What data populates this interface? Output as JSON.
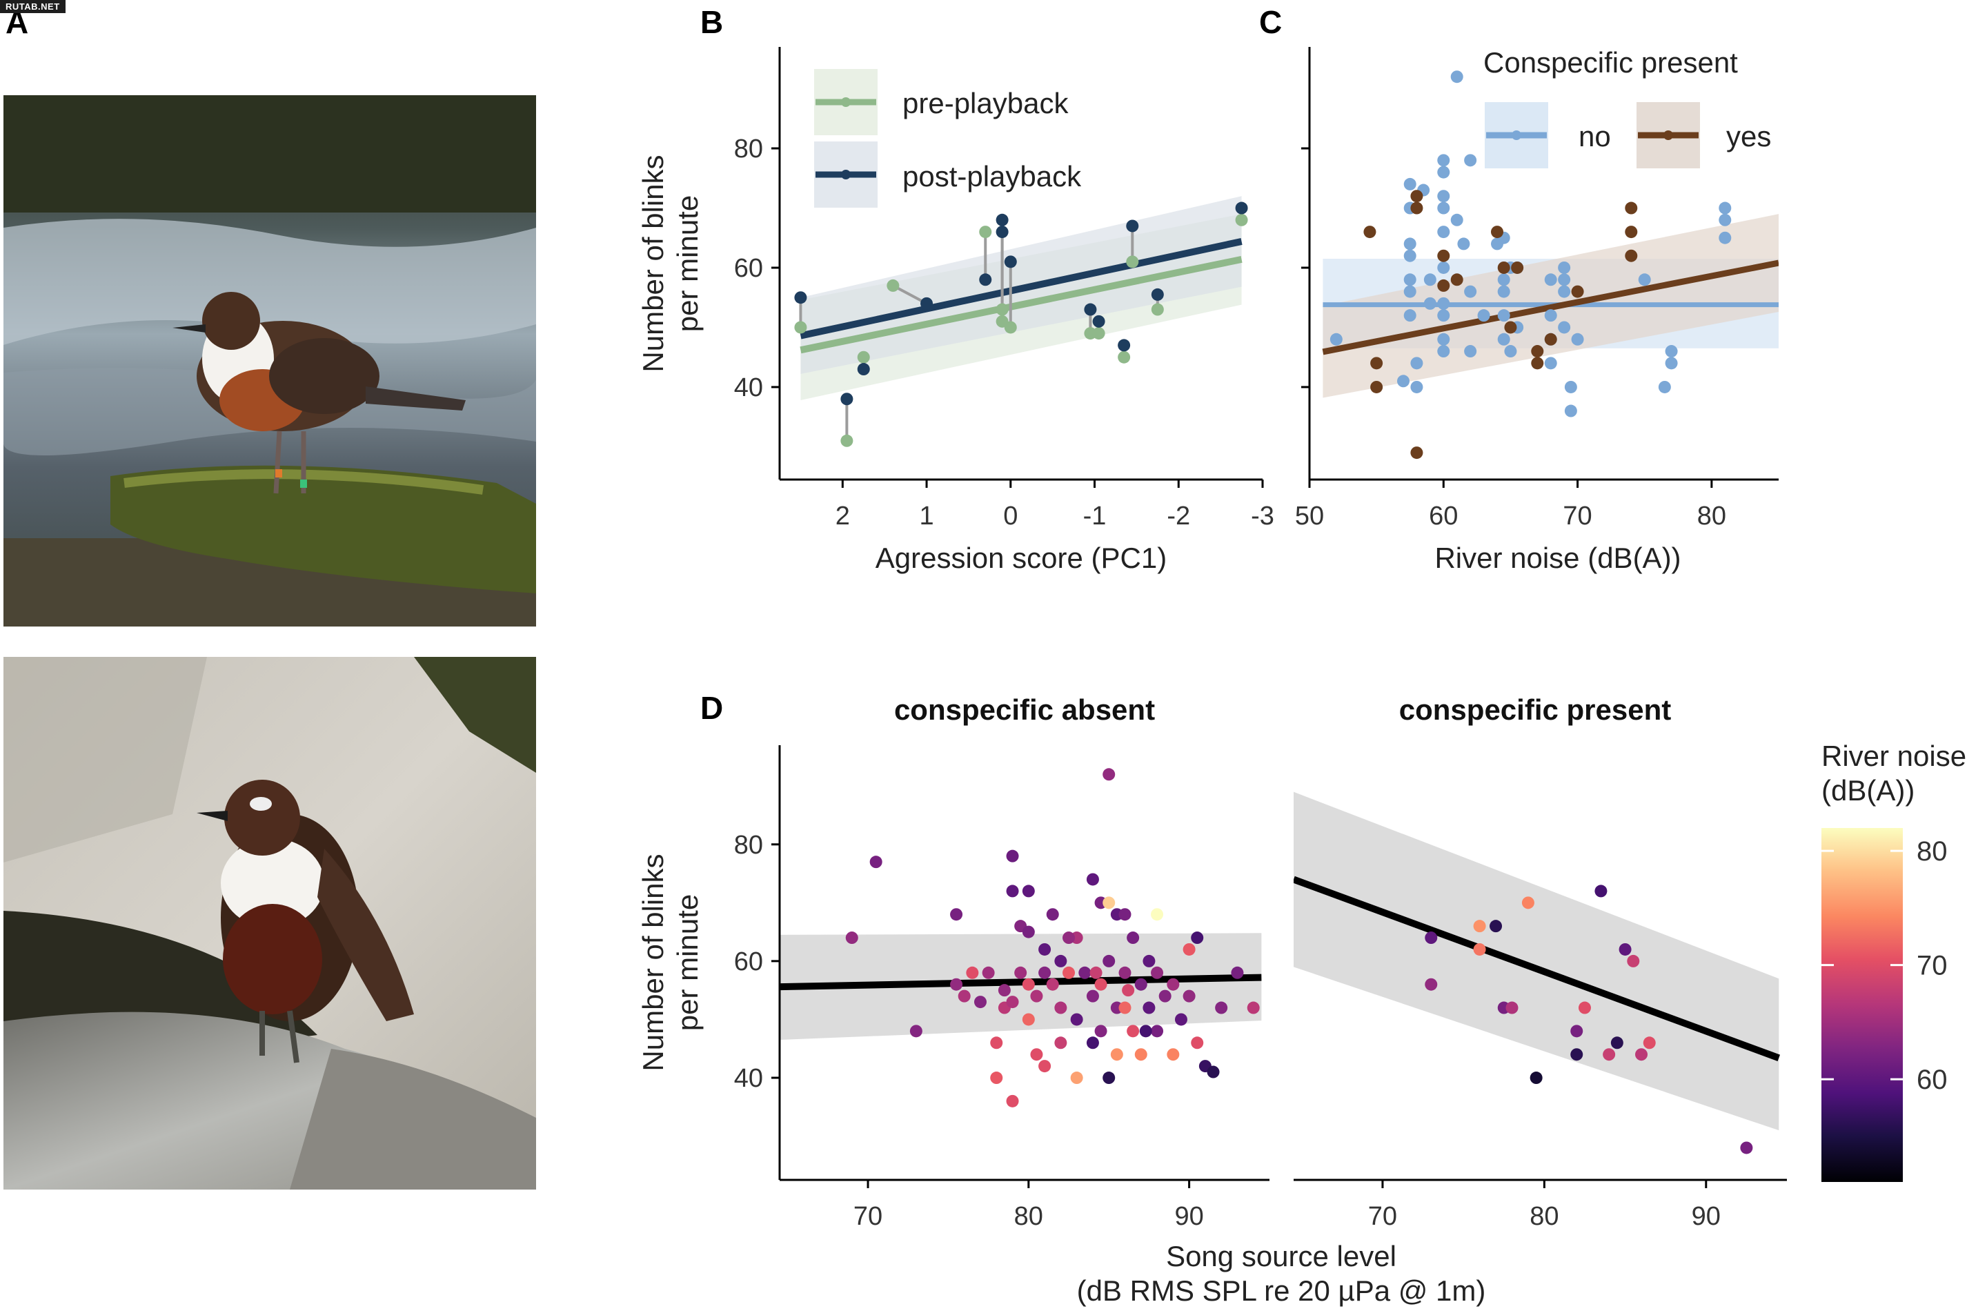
{
  "watermark": "RUTAB.NET",
  "panels": {
    "A": "A",
    "B": "B",
    "C": "C",
    "D": "D"
  },
  "photos": [
    {
      "subject": "dipper-on-mossy-rock"
    },
    {
      "subject": "dipper-on-rock-profile"
    }
  ],
  "chart_data": [
    {
      "panel": "B",
      "type": "scatter",
      "xlabel": "Agression score (PC1)",
      "ylabel": "Number of blinks per minute",
      "xlim": [
        2.75,
        -3.0
      ],
      "ylim": [
        24.5,
        97
      ],
      "x_reversed": true,
      "xticks": [
        2,
        1,
        0,
        -1,
        -2,
        -3
      ],
      "yticks": [
        40,
        60,
        80
      ],
      "legend_position": "top-left",
      "series": [
        {
          "name": "pre-playback",
          "color": "#8fb88a",
          "points": [
            [
              2.5,
              50
            ],
            [
              1.95,
              31
            ],
            [
              1.75,
              45
            ],
            [
              1.4,
              57
            ],
            [
              0.3,
              66
            ],
            [
              0.1,
              53
            ],
            [
              0.1,
              51
            ],
            [
              0,
              50
            ],
            [
              -0.95,
              49
            ],
            [
              -1.05,
              49
            ],
            [
              -1.35,
              45
            ],
            [
              -1.45,
              61
            ],
            [
              -1.75,
              53
            ],
            [
              -2.75,
              68
            ]
          ],
          "fit": {
            "x": [
              2.5,
              -2.75
            ],
            "y": [
              46.2,
              61.4
            ],
            "ci_lower": [
              37.8,
              53.8
            ],
            "ci_upper": [
              54.6,
              69.0
            ]
          }
        },
        {
          "name": "post-playback",
          "color": "#1e3d5e",
          "points": [
            [
              2.5,
              55
            ],
            [
              1.95,
              38
            ],
            [
              1.75,
              43
            ],
            [
              1.0,
              54
            ],
            [
              0.3,
              58
            ],
            [
              0.1,
              68
            ],
            [
              0.1,
              66
            ],
            [
              0,
              61
            ],
            [
              -0.95,
              53
            ],
            [
              -1.05,
              51
            ],
            [
              -1.35,
              47
            ],
            [
              -1.45,
              67
            ],
            [
              -1.75,
              55.5
            ],
            [
              -2.75,
              70
            ]
          ],
          "fit": {
            "x": [
              2.5,
              -2.75
            ],
            "y": [
              48.6,
              64.4
            ],
            "ci_lower": [
              42.2,
              56.8
            ],
            "ci_upper": [
              55.0,
              72.0
            ]
          }
        }
      ]
    },
    {
      "panel": "C",
      "type": "scatter",
      "legend_title": "Conspecific present",
      "xlabel": "River noise (dB(A))",
      "ylabel": "",
      "xlim": [
        50,
        85
      ],
      "ylim": [
        24.5,
        97
      ],
      "xticks": [
        50,
        60,
        70,
        80
      ],
      "yticks": [
        40,
        60,
        80
      ],
      "legend_position": "top-right",
      "series": [
        {
          "name": "no",
          "color": "#7ba7d6",
          "points": [
            [
              52,
              48
            ],
            [
              57,
              41
            ],
            [
              57.5,
              74
            ],
            [
              57.5,
              70
            ],
            [
              57.5,
              64
            ],
            [
              57.5,
              62
            ],
            [
              57.5,
              58
            ],
            [
              57.5,
              56
            ],
            [
              57.5,
              52
            ],
            [
              58,
              40
            ],
            [
              58,
              44
            ],
            [
              58.5,
              73
            ],
            [
              59,
              58
            ],
            [
              59,
              54
            ],
            [
              60,
              78
            ],
            [
              60,
              76
            ],
            [
              60,
              72
            ],
            [
              60,
              70
            ],
            [
              60,
              66
            ],
            [
              60,
              60
            ],
            [
              60,
              54
            ],
            [
              60,
              52
            ],
            [
              60,
              48
            ],
            [
              60,
              46
            ],
            [
              61,
              92
            ],
            [
              61,
              68
            ],
            [
              61.5,
              64
            ],
            [
              62,
              78
            ],
            [
              62,
              56
            ],
            [
              62,
              46
            ],
            [
              63,
              52
            ],
            [
              64,
              64
            ],
            [
              64.5,
              65
            ],
            [
              64.5,
              58
            ],
            [
              64.5,
              56
            ],
            [
              64.5,
              52
            ],
            [
              64.5,
              48
            ],
            [
              65,
              60
            ],
            [
              65,
              46
            ],
            [
              65.5,
              50
            ],
            [
              65.5,
              60
            ],
            [
              68,
              58
            ],
            [
              68,
              52
            ],
            [
              68,
              48
            ],
            [
              68,
              44
            ],
            [
              69,
              60
            ],
            [
              69,
              58
            ],
            [
              69,
              56
            ],
            [
              69,
              50
            ],
            [
              69.5,
              36
            ],
            [
              69.5,
              40
            ],
            [
              70,
              48
            ],
            [
              75,
              58
            ],
            [
              76.5,
              40
            ],
            [
              77,
              46
            ],
            [
              77,
              44
            ],
            [
              81,
              70
            ],
            [
              81,
              68
            ],
            [
              81,
              65
            ]
          ],
          "fit": {
            "x": [
              51,
              85
            ],
            "y": [
              53.8,
              53.8
            ],
            "ci_lower": [
              46.5,
              46.5
            ],
            "ci_upper": [
              61.5,
              61.5
            ]
          }
        },
        {
          "name": "yes",
          "color": "#6b3e1d",
          "points": [
            [
              54.5,
              66
            ],
            [
              55,
              40
            ],
            [
              55,
              44
            ],
            [
              58,
              29
            ],
            [
              58,
              72
            ],
            [
              58,
              70
            ],
            [
              60,
              62
            ],
            [
              60,
              57
            ],
            [
              61,
              58
            ],
            [
              64,
              66
            ],
            [
              64.5,
              60
            ],
            [
              65,
              50
            ],
            [
              65.5,
              60
            ],
            [
              67,
              46
            ],
            [
              67,
              44
            ],
            [
              68,
              48
            ],
            [
              70,
              56
            ],
            [
              74,
              70
            ],
            [
              74,
              66
            ],
            [
              74,
              62
            ]
          ],
          "fit": {
            "x": [
              51,
              85
            ],
            "y": [
              45.9,
              60.8
            ],
            "ci_lower": [
              38.2,
              52.6
            ],
            "ci_upper": [
              53.6,
              69.0
            ]
          }
        }
      ]
    },
    {
      "panel": "D",
      "type": "scatter",
      "facets": [
        "conspecific absent",
        "conspecific present"
      ],
      "ylabel": "Number of blinks per minute",
      "xlabel": "Song source level\n(dB RMS SPL re 20 µPa @ 1m)",
      "xlim": [
        64.5,
        95
      ],
      "ylim": [
        22.5,
        97
      ],
      "xticks": [
        70,
        80,
        90
      ],
      "yticks": [
        40,
        60,
        80
      ],
      "colorbar_label": "River noise\n(dB(A))",
      "colorbar_range": [
        51,
        82
      ],
      "colorbar_ticks": [
        60,
        70,
        80
      ],
      "colorscale": "magma",
      "series": [
        {
          "name": "conspecific absent",
          "points": [
            [
              69,
              64,
              64
            ],
            [
              70.5,
              77,
              62
            ],
            [
              73,
              48,
              63
            ],
            [
              75.5,
              68,
              62
            ],
            [
              75.5,
              56,
              64
            ],
            [
              76,
              54,
              66
            ],
            [
              76.5,
              58,
              70
            ],
            [
              77,
              53,
              63
            ],
            [
              77.5,
              58,
              65
            ],
            [
              78,
              46,
              70
            ],
            [
              78,
              40,
              71
            ],
            [
              78.5,
              55,
              64
            ],
            [
              78.5,
              52,
              67
            ],
            [
              79,
              78,
              61
            ],
            [
              79,
              72,
              60
            ],
            [
              79,
              36,
              70
            ],
            [
              79.5,
              58,
              65
            ],
            [
              79.5,
              66,
              63
            ],
            [
              80,
              72,
              60
            ],
            [
              80,
              56,
              70
            ],
            [
              80,
              50,
              72
            ],
            [
              80.5,
              44,
              70
            ],
            [
              80.5,
              54,
              66
            ],
            [
              81,
              62,
              60
            ],
            [
              81,
              58,
              63
            ],
            [
              81,
              42,
              70
            ],
            [
              81.5,
              68,
              62
            ],
            [
              81.5,
              56,
              67
            ],
            [
              82,
              60,
              60
            ],
            [
              82,
              52,
              66
            ],
            [
              82,
              46,
              68
            ],
            [
              82.5,
              58,
              71
            ],
            [
              83,
              64,
              66
            ],
            [
              83,
              50,
              60
            ],
            [
              83,
              40,
              76
            ],
            [
              83.5,
              58,
              62
            ],
            [
              84,
              74,
              60
            ],
            [
              84,
              54,
              63
            ],
            [
              84,
              46,
              58
            ],
            [
              84.5,
              70,
              62
            ],
            [
              84.5,
              56,
              70
            ],
            [
              84.5,
              48,
              63
            ],
            [
              85,
              40,
              56
            ],
            [
              85,
              92,
              64
            ],
            [
              85,
              60,
              62
            ],
            [
              85.5,
              68,
              60
            ],
            [
              85.5,
              52,
              63
            ],
            [
              85.5,
              44,
              75
            ],
            [
              86,
              68,
              62
            ],
            [
              86,
              52,
              72
            ],
            [
              86,
              58,
              64
            ],
            [
              86.5,
              64,
              62
            ],
            [
              86.5,
              48,
              70
            ],
            [
              87,
              56,
              62
            ],
            [
              87,
              44,
              74
            ],
            [
              87.5,
              60,
              60
            ],
            [
              87.5,
              52,
              60
            ],
            [
              88,
              68,
              82
            ],
            [
              88,
              58,
              64
            ],
            [
              88,
              48,
              62
            ],
            [
              88.5,
              54,
              63
            ],
            [
              89,
              56,
              65
            ],
            [
              89,
              44,
              74
            ],
            [
              89.5,
              50,
              60
            ],
            [
              90,
              62,
              71
            ],
            [
              90,
              54,
              64
            ],
            [
              90.5,
              46,
              70
            ],
            [
              90.5,
              64,
              58
            ],
            [
              91,
              42,
              57
            ],
            [
              91.5,
              41,
              56
            ],
            [
              92,
              52,
              63
            ],
            [
              93,
              58,
              62
            ],
            [
              94,
              52,
              67
            ],
            [
              79,
              53,
              66
            ],
            [
              80,
              65,
              62
            ],
            [
              82.5,
              64,
              64
            ],
            [
              84.2,
              58,
              68
            ],
            [
              86.2,
              55,
              69
            ],
            [
              87.3,
              48,
              58
            ],
            [
              85,
              70,
              79
            ]
          ],
          "fit": {
            "x": [
              64.5,
              94.5
            ],
            "y": [
              55.6,
              57.2
            ],
            "ci_lower": [
              46.5,
              49.8
            ],
            "ci_upper": [
              64.5,
              64.8
            ]
          }
        },
        {
          "name": "conspecific present",
          "points": [
            [
              73,
              64,
              60
            ],
            [
              73,
              56,
              64
            ],
            [
              76,
              66,
              75
            ],
            [
              76,
              62,
              73
            ],
            [
              77,
              66,
              56
            ],
            [
              77.5,
              52,
              62
            ],
            [
              78,
              52,
              66
            ],
            [
              79,
              70,
              74
            ],
            [
              79.5,
              40,
              54
            ],
            [
              82,
              44,
              56
            ],
            [
              82,
              48,
              62
            ],
            [
              82.5,
              52,
              70
            ],
            [
              83.5,
              72,
              58
            ],
            [
              84,
              44,
              68
            ],
            [
              84.5,
              46,
              56
            ],
            [
              85,
              62,
              60
            ],
            [
              85.5,
              60,
              68
            ],
            [
              86,
              44,
              67
            ],
            [
              86.5,
              46,
              70
            ],
            [
              92.5,
              28,
              62
            ]
          ],
          "fit": {
            "x": [
              64.5,
              94.5
            ],
            "y": [
              74.0,
              43.4
            ],
            "ci_lower": [
              59.0,
              31.0
            ],
            "ci_upper": [
              89.0,
              57.0
            ]
          }
        }
      ]
    }
  ]
}
